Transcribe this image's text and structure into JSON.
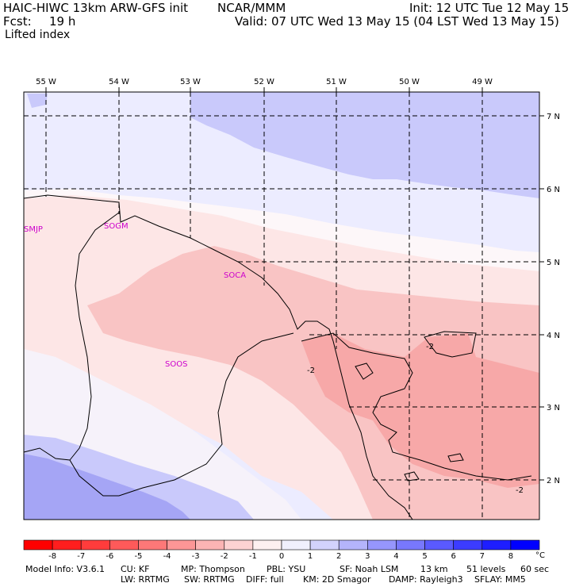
{
  "header": {
    "model_line": "HAIC-HIWC 13km ARW-GFS init",
    "org": "NCAR/MMM",
    "init": "Init: 12 UTC Tue 12 May 15",
    "fcst_label": "Fcst:",
    "fcst_value": "19 h",
    "valid": "Valid: 07 UTC Wed 13 May 15 (04 LST Wed 13 May 15)",
    "field": "Lifted index"
  },
  "map": {
    "lon_labels": [
      "55 W",
      "54 W",
      "53 W",
      "52 W",
      "51 W",
      "50 W",
      "49 W"
    ],
    "lat_labels": [
      "7 N",
      "6 N",
      "5 N",
      "4 N",
      "3 N",
      "2 N"
    ],
    "stations": [
      "SMJP",
      "SOGM",
      "SOCA",
      "SOOS"
    ],
    "contour_labels": [
      "-2",
      "-2",
      "-2"
    ],
    "colors": {
      "neutral": "#ffffff",
      "pos1": "#ececff",
      "pos2": "#c9c9fb",
      "pos3": "#a5a5f5",
      "neg1": "#fde6e6",
      "neg2": "#f9c4c4",
      "neg3": "#f7a8a8"
    }
  },
  "colorbar": {
    "labels": [
      "-8",
      "-7",
      "-6",
      "-5",
      "-4",
      "-3",
      "-2",
      "-1",
      "0",
      "1",
      "2",
      "3",
      "4",
      "5",
      "6",
      "7",
      "8"
    ],
    "unit": "°C",
    "colors": [
      "#ff0000",
      "#ff1e1e",
      "#ff3c3c",
      "#fe5a5a",
      "#fd7878",
      "#fc9696",
      "#fbb4b4",
      "#fcd2d2",
      "#fdf0f0",
      "#f0f0fd",
      "#d2d2fc",
      "#b4b4fb",
      "#9696fc",
      "#7878fd",
      "#5a5afe",
      "#3c3cff",
      "#1e1eff",
      "#0000ff"
    ]
  },
  "footer": {
    "line1": [
      "Model Info: V3.6.1",
      "CU: KF",
      "MP: Thompson",
      "PBL: YSU",
      "SF: Noah LSM",
      "13 km",
      "51 levels",
      "60 sec"
    ],
    "line2": [
      "LW: RRTMG",
      "SW: RRTMG",
      "DIFF: full",
      "KM: 2D Smagor",
      "DAMP: Rayleigh3",
      "SFLAY: MM5"
    ]
  }
}
